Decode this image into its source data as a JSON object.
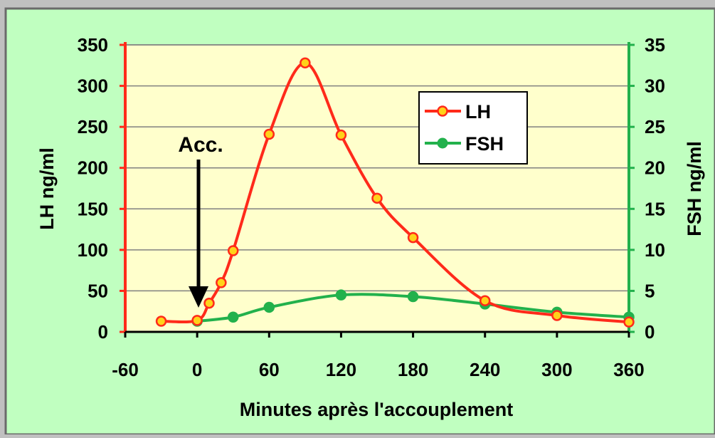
{
  "chart_data": {
    "type": "line",
    "xlabel": "Minutes après l'accouplement",
    "ylabel_left": "LH ng/ml",
    "ylabel_right": "FSH ng/ml",
    "xlim": [
      -60,
      360
    ],
    "x_ticks": [
      -60,
      0,
      60,
      120,
      180,
      240,
      300,
      360
    ],
    "ylim_left": [
      0,
      350
    ],
    "y_ticks_left": [
      0,
      50,
      100,
      150,
      200,
      250,
      300,
      350
    ],
    "ylim_right": [
      0,
      35
    ],
    "y_ticks_right": [
      0,
      5,
      10,
      15,
      20,
      25,
      30,
      35
    ],
    "grid": true,
    "legend": "top-right",
    "annotation": {
      "text": "Acc.",
      "x": 0
    },
    "series": [
      {
        "name": "LH",
        "axis": "left",
        "color": "#ff2a1a",
        "marker_fill": "#ffd21a",
        "x": [
          -30,
          0,
          10,
          20,
          30,
          60,
          90,
          120,
          150,
          180,
          240,
          300,
          360
        ],
        "y": [
          13,
          14,
          35,
          60,
          99,
          241,
          328,
          240,
          163,
          115,
          38,
          20,
          12
        ]
      },
      {
        "name": "FSH",
        "axis": "right",
        "color": "#22b14c",
        "marker_fill": "#22b14c",
        "x": [
          0,
          30,
          60,
          120,
          180,
          240,
          300,
          360
        ],
        "y": [
          1.3,
          1.8,
          3.0,
          4.5,
          4.3,
          3.4,
          2.4,
          1.8
        ]
      }
    ]
  },
  "colors": {
    "outer_bg": "#c0ffc0",
    "plot_bg": "#ffffcc",
    "left_axis": "#ff2a1a",
    "right_axis": "#22b14c",
    "grid": "#808080"
  }
}
